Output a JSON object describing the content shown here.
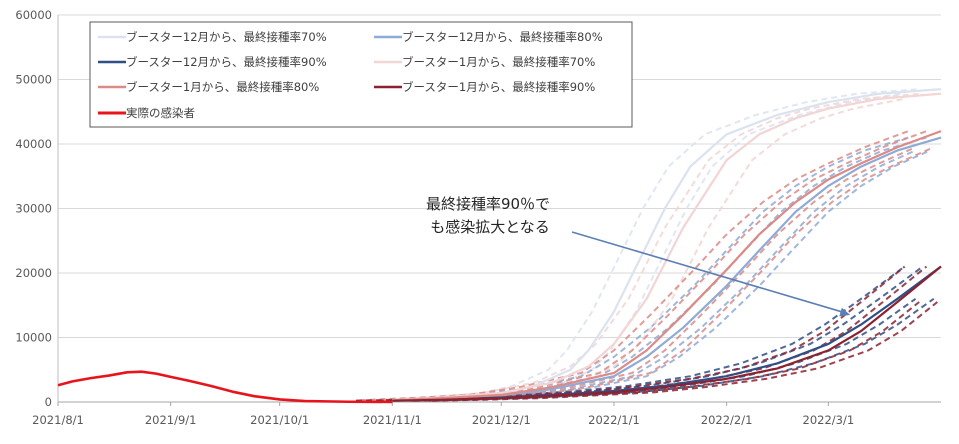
{
  "chart_data": {
    "type": "line",
    "x_ticks": [
      "2021/8/1",
      "2021/9/1",
      "2021/10/1",
      "2021/11/1",
      "2021/12/1",
      "2022/1/1",
      "2022/2/1",
      "2022/3/1"
    ],
    "y_ticks": [
      "0",
      "10000",
      "20000",
      "30000",
      "40000",
      "50000",
      "60000"
    ],
    "xlim": [
      "2021-08-01",
      "2022-04-01"
    ],
    "ylim": [
      0,
      60000
    ],
    "grid": "y",
    "legend_position": "top-left",
    "annotation": {
      "lines": [
        "最終接種率90％で",
        "も感染拡大となる"
      ],
      "arrow_from": [
        "2021-12-15",
        26000
      ],
      "arrow_to": [
        "2022-03-07",
        13500
      ]
    },
    "series": [
      {
        "name": "ブースター12月から、最終接種率70%",
        "color": "#dbe3f0",
        "points": [
          [
            "2021-11-01",
            300
          ],
          [
            "2021-11-15",
            700
          ],
          [
            "2021-12-01",
            1300
          ],
          [
            "2021-12-10",
            2500
          ],
          [
            "2021-12-20",
            5000
          ],
          [
            "2021-12-25",
            8000
          ],
          [
            "2022-01-01",
            14000
          ],
          [
            "2022-01-08",
            22000
          ],
          [
            "2022-01-15",
            30000
          ],
          [
            "2022-01-22",
            36500
          ],
          [
            "2022-02-01",
            41500
          ],
          [
            "2022-02-15",
            44500
          ],
          [
            "2022-03-01",
            46500
          ],
          [
            "2022-03-15",
            47800
          ],
          [
            "2022-04-01",
            48500
          ]
        ]
      },
      {
        "name": "ブースター12月から、最終接種率80%",
        "color": "#8eaad6",
        "points": [
          [
            "2021-11-01",
            250
          ],
          [
            "2021-11-15",
            600
          ],
          [
            "2021-12-01",
            1000
          ],
          [
            "2021-12-15",
            2000
          ],
          [
            "2022-01-01",
            4000
          ],
          [
            "2022-01-10",
            7000
          ],
          [
            "2022-01-20",
            11500
          ],
          [
            "2022-02-01",
            18000
          ],
          [
            "2022-02-10",
            23500
          ],
          [
            "2022-02-20",
            29500
          ],
          [
            "2022-03-01",
            33500
          ],
          [
            "2022-03-10",
            36500
          ],
          [
            "2022-03-20",
            39000
          ],
          [
            "2022-04-01",
            41000
          ]
        ]
      },
      {
        "name": "ブースター12月から、最終接種率90%",
        "color": "#2f4f86",
        "points": [
          [
            "2021-11-01",
            200
          ],
          [
            "2021-11-15",
            400
          ],
          [
            "2021-12-01",
            700
          ],
          [
            "2021-12-15",
            1100
          ],
          [
            "2022-01-01",
            1700
          ],
          [
            "2022-01-15",
            2500
          ],
          [
            "2022-02-01",
            4000
          ],
          [
            "2022-02-15",
            6000
          ],
          [
            "2022-03-01",
            9000
          ],
          [
            "2022-03-10",
            12000
          ],
          [
            "2022-03-20",
            16000
          ],
          [
            "2022-04-01",
            21000
          ]
        ]
      },
      {
        "name": "ブースター1月から、最終接種率70%",
        "color": "#f2d5d5",
        "points": [
          [
            "2021-11-01",
            300
          ],
          [
            "2021-11-15",
            700
          ],
          [
            "2021-12-01",
            1400
          ],
          [
            "2021-12-15",
            3000
          ],
          [
            "2021-12-25",
            5500
          ],
          [
            "2022-01-01",
            9000
          ],
          [
            "2022-01-10",
            16000
          ],
          [
            "2022-01-20",
            27000
          ],
          [
            "2022-02-01",
            37500
          ],
          [
            "2022-02-10",
            41500
          ],
          [
            "2022-02-20",
            44000
          ],
          [
            "2022-03-01",
            45500
          ],
          [
            "2022-03-15",
            47000
          ],
          [
            "2022-04-01",
            47800
          ]
        ]
      },
      {
        "name": "ブースター1月から、最終接種率80%",
        "color": "#dc8a86",
        "points": [
          [
            "2021-11-01",
            250
          ],
          [
            "2021-11-15",
            600
          ],
          [
            "2021-12-01",
            1100
          ],
          [
            "2021-12-15",
            2300
          ],
          [
            "2022-01-01",
            4500
          ],
          [
            "2022-01-10",
            8000
          ],
          [
            "2022-01-20",
            13500
          ],
          [
            "2022-02-01",
            20500
          ],
          [
            "2022-02-10",
            26000
          ],
          [
            "2022-02-20",
            31000
          ],
          [
            "2022-03-01",
            34500
          ],
          [
            "2022-03-10",
            37000
          ],
          [
            "2022-03-20",
            39500
          ],
          [
            "2022-04-01",
            42000
          ]
        ]
      },
      {
        "name": "ブースター1月から、最終接種率90%",
        "color": "#8b2230",
        "points": [
          [
            "2021-11-01",
            200
          ],
          [
            "2021-11-15",
            350
          ],
          [
            "2021-12-01",
            600
          ],
          [
            "2021-12-15",
            1000
          ],
          [
            "2022-01-01",
            1500
          ],
          [
            "2022-01-15",
            2300
          ],
          [
            "2022-02-01",
            3600
          ],
          [
            "2022-02-15",
            5200
          ],
          [
            "2022-03-01",
            8000
          ],
          [
            "2022-03-10",
            11000
          ],
          [
            "2022-03-20",
            15500
          ],
          [
            "2022-04-01",
            21000
          ]
        ]
      },
      {
        "name": "実際の感染者",
        "color": "#e8141c",
        "points": [
          [
            "2021-08-01",
            2600
          ],
          [
            "2021-08-05",
            3200
          ],
          [
            "2021-08-10",
            3700
          ],
          [
            "2021-08-15",
            4100
          ],
          [
            "2021-08-20",
            4600
          ],
          [
            "2021-08-24",
            4700
          ],
          [
            "2021-08-28",
            4400
          ],
          [
            "2021-09-01",
            3900
          ],
          [
            "2021-09-06",
            3300
          ],
          [
            "2021-09-12",
            2500
          ],
          [
            "2021-09-18",
            1600
          ],
          [
            "2021-09-24",
            900
          ],
          [
            "2021-10-01",
            400
          ],
          [
            "2021-10-08",
            150
          ],
          [
            "2021-10-20",
            40
          ],
          [
            "2021-11-01",
            10
          ]
        ]
      }
    ],
    "scenario_bands": [
      {
        "color": "#dbe3f0",
        "offsets": [
          -6,
          0,
          6
        ]
      },
      {
        "color": "#8eaad6",
        "offsets": [
          -9,
          -4,
          5,
          9
        ]
      },
      {
        "color": "#2f4f86",
        "offsets": [
          -10,
          -5,
          5,
          10
        ]
      },
      {
        "color": "#f2d5d5",
        "offsets": [
          -5,
          0,
          7
        ]
      },
      {
        "color": "#dc8a86",
        "offsets": [
          -9,
          -4,
          5,
          10
        ]
      },
      {
        "color": "#8b2230",
        "offsets": [
          -10,
          -4,
          6,
          11
        ]
      }
    ]
  }
}
